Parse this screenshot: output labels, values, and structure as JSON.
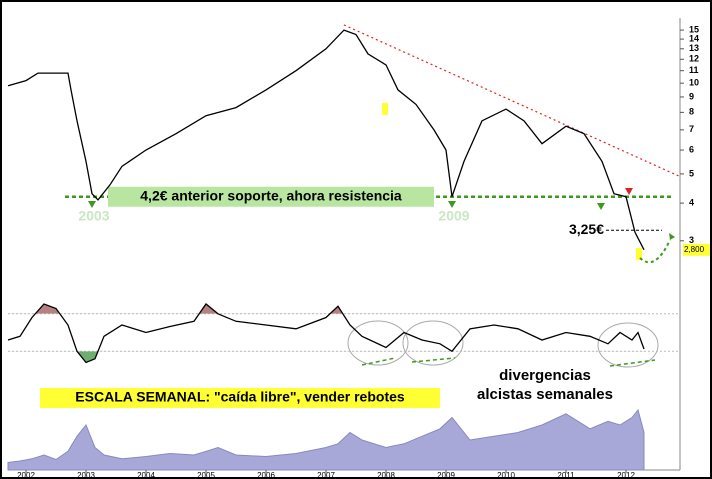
{
  "chart_data": [
    {
      "type": "line",
      "log_scale": true,
      "color": "#000000",
      "x": [
        2001.7,
        2002.0,
        2002.2,
        2002.7,
        2002.75,
        2002.85,
        2003.0,
        2003.1,
        2003.2,
        2003.4,
        2003.6,
        2004.0,
        2004.5,
        2005.0,
        2005.5,
        2006.0,
        2006.5,
        2007.0,
        2007.3,
        2007.5,
        2007.7,
        2008.0,
        2008.2,
        2008.5,
        2008.8,
        2009.0,
        2009.1,
        2009.3,
        2009.6,
        2010.0,
        2010.3,
        2010.6,
        2011.0,
        2011.3,
        2011.6,
        2011.8,
        2012.0,
        2012.15,
        2012.3
      ],
      "values": [
        9.8,
        10.2,
        10.8,
        10.8,
        9.5,
        7.5,
        5.5,
        4.3,
        4.1,
        4.6,
        5.3,
        6.0,
        6.8,
        7.8,
        8.3,
        9.5,
        11.0,
        13.0,
        15.0,
        14.5,
        12.5,
        11.5,
        9.5,
        8.5,
        7.0,
        6.0,
        4.2,
        5.5,
        7.5,
        8.2,
        7.5,
        6.3,
        7.2,
        6.8,
        5.5,
        4.3,
        4.2,
        3.2,
        2.8
      ],
      "xlim": [
        2001.7,
        2012.9
      ],
      "ylim": [
        2.4,
        16.2
      ],
      "yticks": [
        3,
        4,
        5,
        6,
        7,
        8,
        9,
        10,
        11,
        12,
        13,
        14,
        15
      ],
      "last_price": {
        "value": 2.8,
        "label": "2,800"
      },
      "support": {
        "value": 4.2,
        "label": "4,2€ anterior soporte, ahora resistencia",
        "color": "#3c9a1e"
      },
      "level": {
        "value": 3.25,
        "label": "3,25€"
      },
      "year_marks": [
        2003,
        2009
      ],
      "resistance_line": {
        "x": [
          2007.3,
          2012.9
        ],
        "y": [
          15.6,
          4.9
        ],
        "color": "#e02020"
      }
    },
    {
      "type": "oscillator",
      "color": "#000000",
      "upper_fill": "#b48282",
      "lower_fill": "#6fae6f",
      "x": [
        2001.7,
        2001.9,
        2002.1,
        2002.3,
        2002.5,
        2002.7,
        2002.85,
        2003.0,
        2003.15,
        2003.3,
        2003.6,
        2004.0,
        2004.4,
        2004.8,
        2005.0,
        2005.2,
        2005.5,
        2006.0,
        2006.5,
        2007.0,
        2007.2,
        2007.4,
        2007.6,
        2008.0,
        2008.3,
        2008.6,
        2008.9,
        2009.1,
        2009.4,
        2009.8,
        2010.2,
        2010.6,
        2011.0,
        2011.4,
        2011.7,
        2011.9,
        2012.1,
        2012.2,
        2012.3
      ],
      "values": [
        40,
        45,
        70,
        88,
        82,
        60,
        25,
        10,
        15,
        45,
        60,
        50,
        58,
        65,
        88,
        75,
        65,
        60,
        55,
        70,
        85,
        60,
        45,
        30,
        50,
        40,
        35,
        25,
        55,
        60,
        55,
        40,
        50,
        45,
        35,
        50,
        40,
        50,
        28
      ],
      "xlim": [
        2001.7,
        2012.9
      ],
      "ylim": [
        0,
        100
      ],
      "bands": [
        75,
        25
      ],
      "annotation": [
        "divergencias",
        "alcistas semanales"
      ]
    },
    {
      "type": "area",
      "color": "#a8a8d8",
      "x": [
        2001.7,
        2001.9,
        2002.1,
        2002.3,
        2002.5,
        2002.7,
        2002.85,
        2003.0,
        2003.15,
        2003.3,
        2003.6,
        2004.0,
        2004.4,
        2004.8,
        2005.0,
        2005.2,
        2005.5,
        2006.0,
        2006.5,
        2007.0,
        2007.2,
        2007.4,
        2007.6,
        2008.0,
        2008.3,
        2008.6,
        2008.9,
        2009.1,
        2009.4,
        2009.8,
        2010.2,
        2010.6,
        2011.0,
        2011.4,
        2011.7,
        2011.9,
        2012.1,
        2012.2,
        2012.3
      ],
      "values": [
        10,
        12,
        15,
        20,
        14,
        25,
        45,
        60,
        30,
        20,
        15,
        18,
        22,
        20,
        25,
        30,
        20,
        18,
        22,
        30,
        35,
        50,
        40,
        30,
        35,
        45,
        55,
        70,
        40,
        45,
        50,
        60,
        75,
        55,
        65,
        60,
        70,
        80,
        50
      ],
      "xlim": [
        2001.7,
        2012.9
      ],
      "ylim": [
        0,
        100
      ],
      "xticks": [
        2002,
        2003,
        2004,
        2005,
        2006,
        2007,
        2008,
        2009,
        2010,
        2011,
        2012
      ],
      "note": "ESCALA SEMANAL: \"caída libre\", vender rebotes"
    }
  ]
}
